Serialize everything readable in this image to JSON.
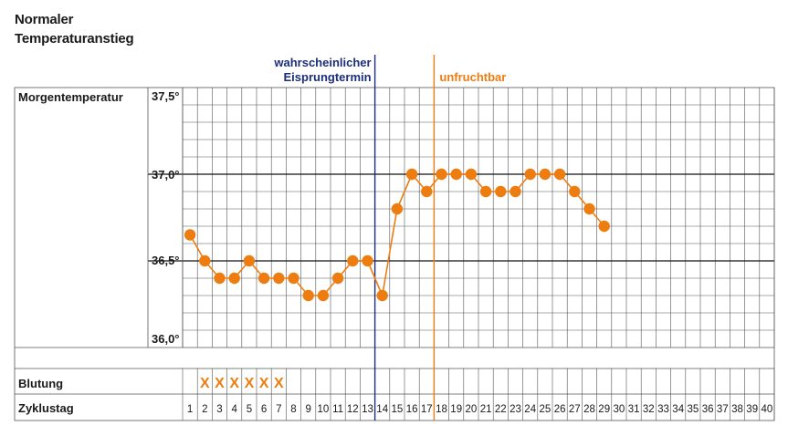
{
  "title_lines": [
    "Normaler",
    "Temperaturanstieg"
  ],
  "chart_data": {
    "type": "line",
    "title": "Normaler Temperaturanstieg",
    "row_labels": {
      "temperature": "Morgentemperatur",
      "bleeding": "Blutung",
      "cycle_day": "Zyklustag"
    },
    "y_ticks": [
      "37,5°",
      "37,0°",
      "36,5°",
      "36,0°"
    ],
    "ylim": [
      36.0,
      37.5
    ],
    "grid": true,
    "cycle_days": [
      1,
      2,
      3,
      4,
      5,
      6,
      7,
      8,
      9,
      10,
      11,
      12,
      13,
      14,
      15,
      16,
      17,
      18,
      19,
      20,
      21,
      22,
      23,
      24,
      25,
      26,
      27,
      28,
      29,
      30,
      31,
      32,
      33,
      34,
      35,
      36,
      37,
      38,
      39,
      40
    ],
    "series": [
      {
        "values": [
          36.65,
          36.5,
          36.4,
          36.4,
          36.5,
          36.4,
          36.4,
          36.4,
          36.3,
          36.3,
          36.4,
          36.5,
          36.5,
          36.3,
          36.8,
          37.0,
          36.9,
          37.0,
          37.0,
          37.0,
          36.9,
          36.9,
          36.9,
          37.0,
          37.0,
          37.0,
          36.9,
          36.8,
          36.7
        ]
      }
    ],
    "bleeding_days": [
      2,
      3,
      4,
      5,
      6,
      7
    ],
    "bleeding_mark": "X",
    "annotations": [
      {
        "text_lines": [
          "wahrscheinlicher",
          "Eisprungtermin"
        ],
        "day_after": 13,
        "color": "#1c2e7a"
      },
      {
        "text_lines": [
          "unfruchtbar"
        ],
        "day_after": 17,
        "color": "#ee7d11"
      }
    ],
    "colors": {
      "series": "#ee7d11",
      "grid": "#555555",
      "major_line": "#111111"
    }
  }
}
